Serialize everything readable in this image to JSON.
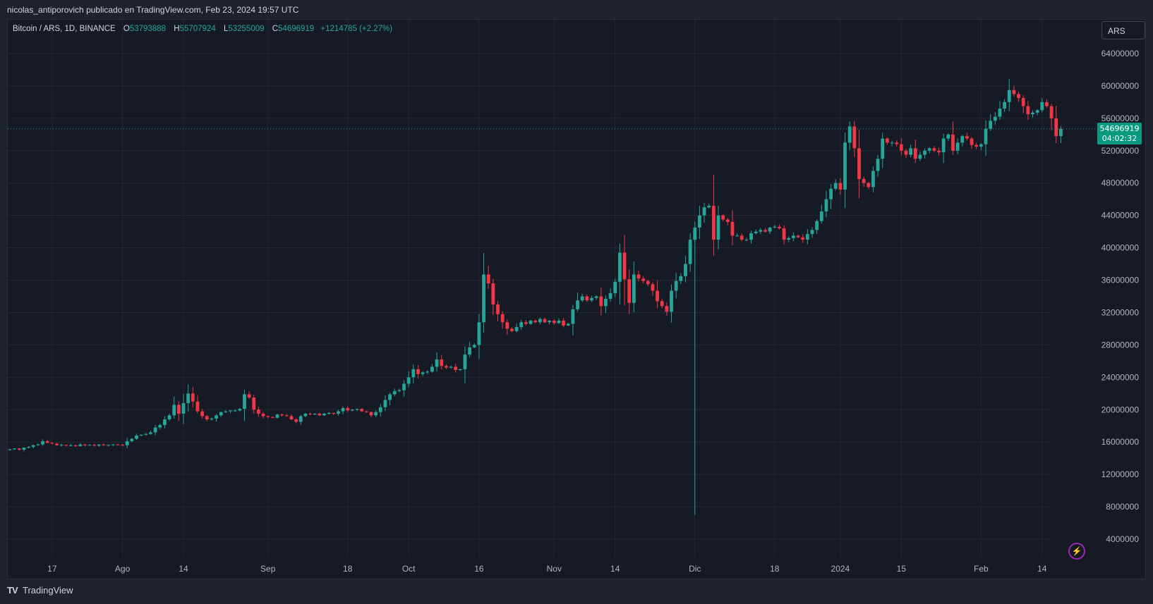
{
  "header": {
    "published": "nicolas_antiporovich publicado en TradingView.com, Feb 23, 2024 19:57 UTC"
  },
  "legend": {
    "symbol": "Bitcoin / ARS, 1D, BINANCE",
    "o_label": "O",
    "o": "53793888",
    "h_label": "H",
    "h": "55707924",
    "l_label": "L",
    "l": "53255009",
    "c_label": "C",
    "c": "54696919",
    "change": "+1214785 (+2.27%)"
  },
  "currency_button": "ARS",
  "last_price": {
    "price": "54696919",
    "countdown": "04:02:32"
  },
  "brand": {
    "name": "TradingView",
    "logo_text": "TV"
  },
  "colors": {
    "up": "#26a69a",
    "down": "#f23645",
    "grid": "#242832",
    "bg": "#161a25",
    "accent": "#089981"
  },
  "icons": {
    "bolt": "lightning-icon"
  },
  "chart_data": {
    "type": "candlestick",
    "ylim": [
      4000000,
      64000000
    ],
    "y_ticks": [
      "64000000",
      "60000000",
      "56000000",
      "52000000",
      "48000000",
      "44000000",
      "40000000",
      "36000000",
      "32000000",
      "28000000",
      "24000000",
      "20000000",
      "16000000",
      "12000000",
      "8000000",
      "4000000"
    ],
    "x_ticks": [
      {
        "label": "17",
        "day": 9
      },
      {
        "label": "Ago",
        "day": 24
      },
      {
        "label": "14",
        "day": 37
      },
      {
        "label": "Sep",
        "day": 55
      },
      {
        "label": "18",
        "day": 72
      },
      {
        "label": "Oct",
        "day": 85
      },
      {
        "label": "16",
        "day": 100
      },
      {
        "label": "Nov",
        "day": 116
      },
      {
        "label": "14",
        "day": 129
      },
      {
        "label": "Dic",
        "day": 146
      },
      {
        "label": "18",
        "day": 163
      },
      {
        "label": "2024",
        "day": 177
      },
      {
        "label": "15",
        "day": 190
      },
      {
        "label": "Feb",
        "day": 207
      },
      {
        "label": "14",
        "day": 220
      }
    ],
    "close_series": [
      15100000,
      15200000,
      15050000,
      15300000,
      15400000,
      15600000,
      15700000,
      16100000,
      15900000,
      15800000,
      15600000,
      15650000,
      15550000,
      15600000,
      15500000,
      15700000,
      15600000,
      15650000,
      15550000,
      15700000,
      15600000,
      15650000,
      15700000,
      15650000,
      15600000,
      16100000,
      16400000,
      16800000,
      16900000,
      17000000,
      17200000,
      17800000,
      18100000,
      18800000,
      19300000,
      20600000,
      19500000,
      20800000,
      22000000,
      21000000,
      19800000,
      19200000,
      18800000,
      18900000,
      19300000,
      19700000,
      19800000,
      19900000,
      19900000,
      20100000,
      21900000,
      21500000,
      20000000,
      19500000,
      19200000,
      19100000,
      19000000,
      19400000,
      19300000,
      19200000,
      18800000,
      18500000,
      19200000,
      19500000,
      19400000,
      19500000,
      19300000,
      19500000,
      19600000,
      19500000,
      19800000,
      20200000,
      19900000,
      20000000,
      20100000,
      19800000,
      19700000,
      19300000,
      19700000,
      20300000,
      21200000,
      21900000,
      22300000,
      22400000,
      23200000,
      24000000,
      25000000,
      24400000,
      24600000,
      24700000,
      25300000,
      26200000,
      25400000,
      25200000,
      25300000,
      24900000,
      25000000,
      26800000,
      27700000,
      28000000,
      30800000,
      36700000,
      35600000,
      33000000,
      31800000,
      30800000,
      30000000,
      29700000,
      30200000,
      30800000,
      30600000,
      31000000,
      30800000,
      31200000,
      30800000,
      31000000,
      30700000,
      31000000,
      30400000,
      30600000,
      32400000,
      33500000,
      34000000,
      33500000,
      33800000,
      34000000,
      32800000,
      33700000,
      34400000,
      35800000,
      39400000,
      36100000,
      33200000,
      36700000,
      36200000,
      35900000,
      35500000,
      34700000,
      33400000,
      32800000,
      32100000,
      34700000,
      35900000,
      36500000,
      38000000,
      41000000,
      42500000,
      44000000,
      45000000,
      45200000,
      41000000,
      44000000,
      43500000,
      43200000,
      41500000,
      41500000,
      41000000,
      41000000,
      41800000,
      42000000,
      42200000,
      42000000,
      42500000,
      42600000,
      42400000,
      41000000,
      41200000,
      41500000,
      41300000,
      41000000,
      41700000,
      42200000,
      43300000,
      44500000,
      46000000,
      47300000,
      48000000,
      47200000,
      53000000,
      55000000,
      52300000,
      48500000,
      48000000,
      47500000,
      49500000,
      51000000,
      53500000,
      53000000,
      53000000,
      52800000,
      52000000,
      51500000,
      52300000,
      51000000,
      51500000,
      52000000,
      52300000,
      52000000,
      51800000,
      53500000,
      54000000,
      52000000,
      53000000,
      53800000,
      53500000,
      52700000,
      52500000,
      52800000,
      54700000,
      55700000,
      56200000,
      57200000,
      58000000,
      59500000,
      59000000,
      58500000,
      57500000,
      56500000,
      56700000,
      57000000,
      58000000,
      57500000,
      56000000,
      53800000,
      54696919
    ],
    "wick_outlier": {
      "day": 146,
      "low": 7000000
    }
  }
}
